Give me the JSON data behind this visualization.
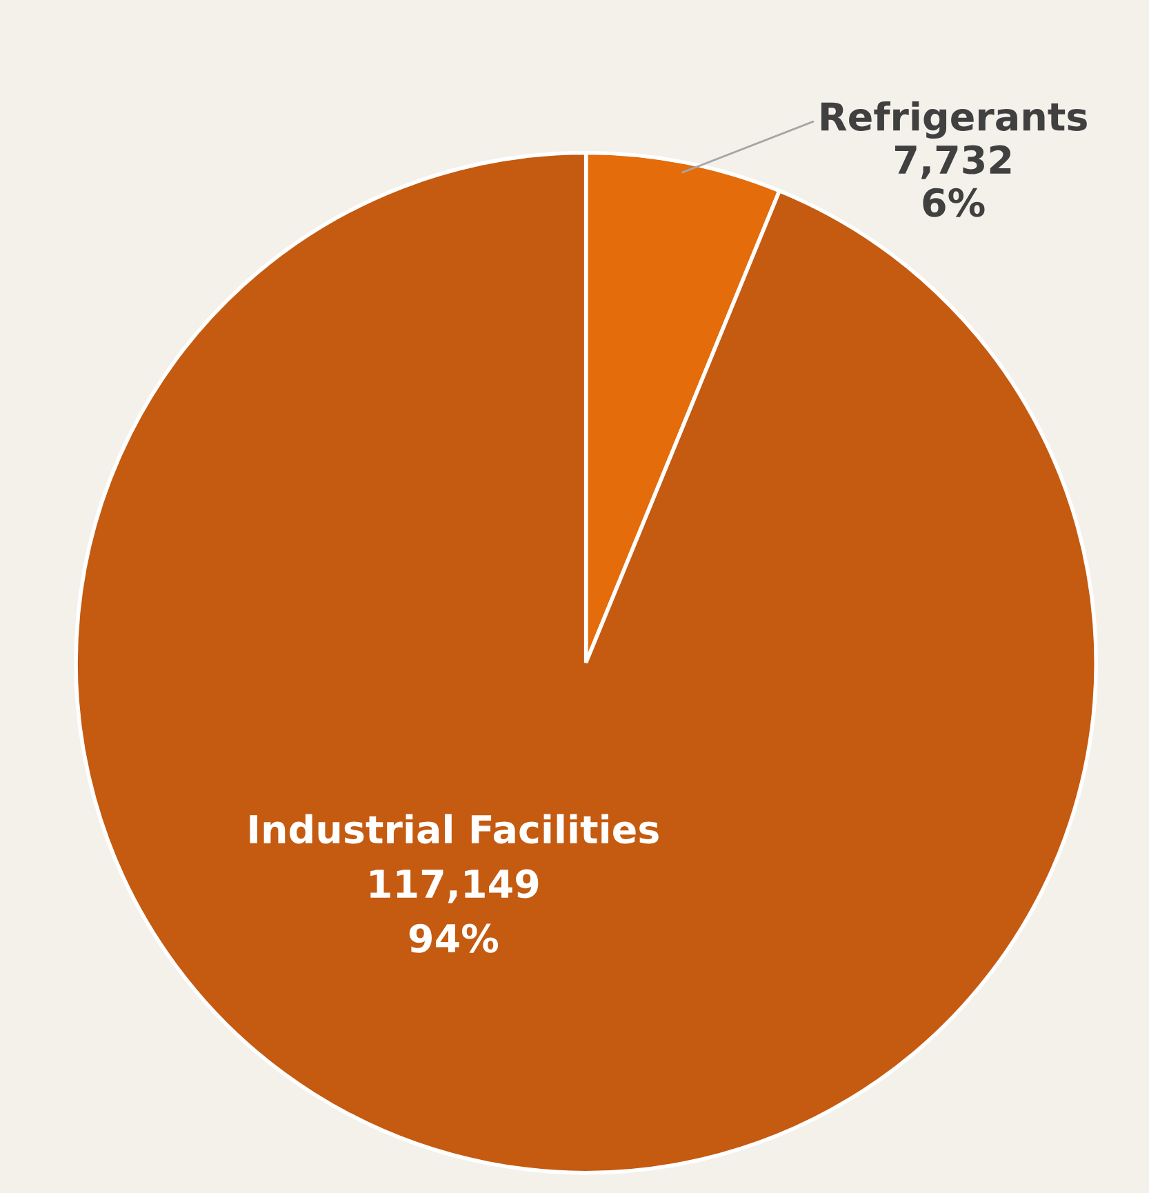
{
  "chart_data": {
    "type": "pie",
    "categories": [
      "Refrigerants",
      "Industrial Facilities"
    ],
    "values": [
      7732,
      117149
    ],
    "colors": [
      "#e46c0a",
      "#c55a11"
    ],
    "value_labels": [
      "7,732\n6%",
      "117,149\n94%"
    ],
    "legend": false
  }
}
